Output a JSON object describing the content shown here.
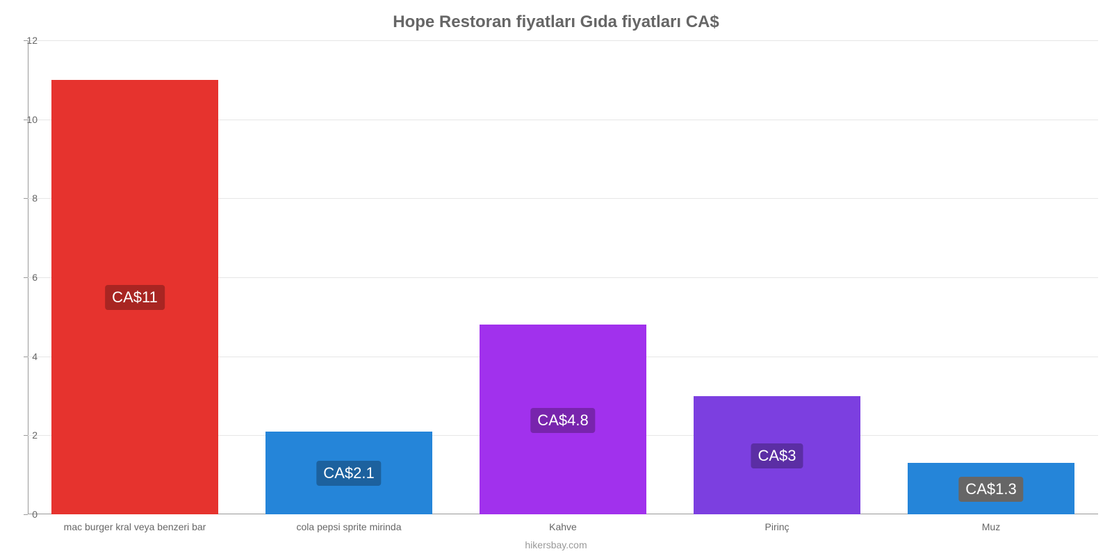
{
  "chart": {
    "type": "bar",
    "title": "Hope Restoran fiyatları Gıda fiyatları CA$",
    "title_fontsize": 24,
    "title_color": "#666666",
    "footer": "hikersbay.com",
    "footer_color": "#999999",
    "background_color": "#ffffff",
    "grid_color": "#e6e6e6",
    "axis_color": "#999999",
    "tick_label_color": "#666666",
    "tick_label_fontsize": 14,
    "ylim": [
      0,
      12
    ],
    "ytick_step": 2,
    "yticks": [
      0,
      2,
      4,
      6,
      8,
      10,
      12
    ],
    "bar_width_ratio": 0.78,
    "bar_label_fontsize": 22,
    "bar_label_text_color": "#ffffff",
    "categories": [
      "mac burger kral veya benzeri bar",
      "cola pepsi sprite mirinda",
      "Kahve",
      "Pirinç",
      "Muz"
    ],
    "values": [
      11,
      2.1,
      4.8,
      3,
      1.3
    ],
    "bar_colors": [
      "#e6332e",
      "#2585d9",
      "#a131ed",
      "#7c3fe0",
      "#2585d9"
    ],
    "bar_label_bg_colors": [
      "#a82522",
      "#1c619e",
      "#7824ad",
      "#5b2ea4",
      "#666666"
    ],
    "bar_labels": [
      "CA$11",
      "CA$2.1",
      "CA$4.8",
      "CA$3",
      "CA$1.3"
    ]
  }
}
